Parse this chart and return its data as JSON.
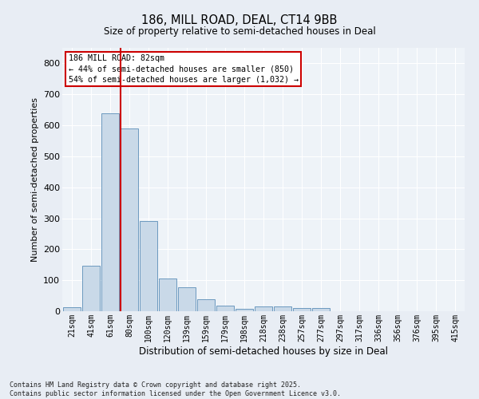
{
  "title1": "186, MILL ROAD, DEAL, CT14 9BB",
  "title2": "Size of property relative to semi-detached houses in Deal",
  "xlabel": "Distribution of semi-detached houses by size in Deal",
  "ylabel": "Number of semi-detached properties",
  "bar_labels": [
    "21sqm",
    "41sqm",
    "61sqm",
    "80sqm",
    "100sqm",
    "120sqm",
    "139sqm",
    "159sqm",
    "179sqm",
    "198sqm",
    "218sqm",
    "238sqm",
    "257sqm",
    "277sqm",
    "297sqm",
    "317sqm",
    "336sqm",
    "356sqm",
    "376sqm",
    "395sqm",
    "415sqm"
  ],
  "bar_values": [
    12,
    148,
    638,
    590,
    290,
    105,
    78,
    38,
    17,
    8,
    15,
    15,
    10,
    11,
    0,
    0,
    0,
    0,
    0,
    0,
    0
  ],
  "bar_color": "#c9d9e8",
  "bar_edge_color": "#5b8db8",
  "vline_color": "#cc0000",
  "annotation_title": "186 MILL ROAD: 82sqm",
  "annotation_line1": "← 44% of semi-detached houses are smaller (850)",
  "annotation_line2": "54% of semi-detached houses are larger (1,032) →",
  "annotation_box_color": "#cc0000",
  "ylim": [
    0,
    850
  ],
  "yticks": [
    0,
    100,
    200,
    300,
    400,
    500,
    600,
    700,
    800
  ],
  "footer": "Contains HM Land Registry data © Crown copyright and database right 2025.\nContains public sector information licensed under the Open Government Licence v3.0.",
  "bg_color": "#e8edf4",
  "plot_bg_color": "#eef3f8"
}
